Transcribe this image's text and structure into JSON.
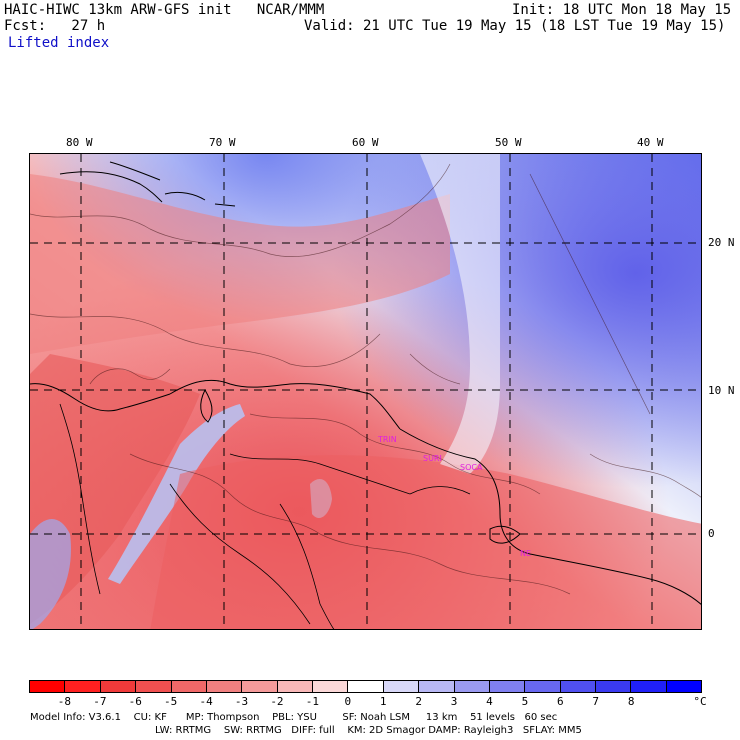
{
  "header": {
    "title": "HAIC-HIWC 13km ARW-GFS init   NCAR/MMM",
    "init": "Init: 18 UTC Mon 18 May 15",
    "fcst": "Fcst:   27 h",
    "valid": "Valid: 21 UTC Tue 19 May 15 (18 LST Tue 19 May 15)",
    "field": "Lifted index"
  },
  "map": {
    "lon_labels": [
      "80 W",
      "70 W",
      "60 W",
      "50 W",
      "40 W"
    ],
    "lat_labels": [
      "20 N",
      "10 N",
      "0"
    ],
    "stations": [
      "TRIN",
      "SURI",
      "SOCA",
      "NE"
    ],
    "colors": {
      "warm": "#e8384a",
      "cool": "#5050e8",
      "land_border": "#000000",
      "station": "#e020e0"
    }
  },
  "colorbar": {
    "ticks": [
      "-8",
      "-7",
      "-6",
      "-5",
      "-4",
      "-3",
      "-2",
      "-1",
      "0",
      "1",
      "2",
      "3",
      "4",
      "5",
      "6",
      "7",
      "8"
    ],
    "unit": "°C",
    "colors": [
      "#ff0000",
      "#ff2020",
      "#f03a3a",
      "#f05050",
      "#f06868",
      "#f08080",
      "#f49a9a",
      "#f8b8b8",
      "#fbd8d8",
      "#ffffff",
      "#d8d8f8",
      "#b8b8f4",
      "#9a9af0",
      "#8080f0",
      "#6868f0",
      "#5050f0",
      "#3a3af0",
      "#2020f8",
      "#0000ff"
    ]
  },
  "footer": {
    "line1": "Model Info: V3.6.1    CU: KF      MP: Thompson    PBL: YSU        SF: Noah LSM     13 km    51 levels   60 sec",
    "line2": "LW: RRTMG    SW: RRTMG   DIFF: full    KM: 2D Smagor DAMP: Rayleigh3   SFLAY: MM5"
  }
}
